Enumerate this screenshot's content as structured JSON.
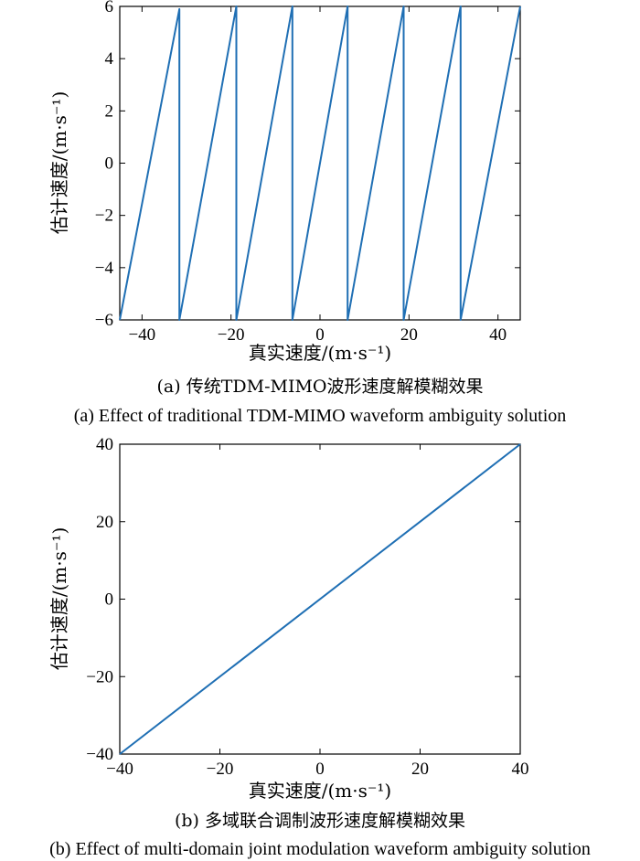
{
  "chart_data": [
    {
      "type": "line",
      "title": "",
      "xlabel": "真实速度/(m·s⁻¹)",
      "ylabel": "估计速度/(m·s⁻¹)",
      "xlim": [
        -45,
        45
      ],
      "ylim": [
        -6,
        6
      ],
      "xticks": [
        -40,
        -20,
        0,
        20,
        40
      ],
      "xtick_labels": [
        "−40",
        "−20",
        "0",
        "20",
        "40"
      ],
      "yticks": [
        -6,
        -4,
        -2,
        0,
        2,
        4,
        6
      ],
      "ytick_labels": [
        "−6",
        "−4",
        "−2",
        "0",
        "2",
        "4",
        "6"
      ],
      "grid": false,
      "color": "#1f6fb4",
      "series": [
        {
          "values_x": [
            -45,
            -31.6,
            -31.6,
            -18.8,
            -18.8,
            -6.2,
            -6.2,
            6.2,
            6.2,
            18.8,
            18.8,
            31.6,
            31.6,
            45
          ],
          "values_y": [
            -6,
            5.9,
            -6,
            6,
            -6,
            6,
            -6,
            6,
            -6,
            6,
            -6,
            6,
            -6,
            6
          ]
        }
      ],
      "caption_zh": "(a) 传统TDM-MIMO波形速度解模糊效果",
      "caption_en": "(a) Effect of traditional TDM-MIMO waveform ambiguity solution"
    },
    {
      "type": "line",
      "title": "",
      "xlabel": "真实速度/(m·s⁻¹)",
      "ylabel": "估计速度/(m·s⁻¹)",
      "xlim": [
        -40,
        40
      ],
      "ylim": [
        -40,
        40
      ],
      "xticks": [
        -40,
        -20,
        0,
        20,
        40
      ],
      "xtick_labels": [
        "−40",
        "−20",
        "0",
        "20",
        "40"
      ],
      "yticks": [
        -40,
        -20,
        0,
        20,
        40
      ],
      "ytick_labels": [
        "−40",
        "−20",
        "0",
        "20",
        "40"
      ],
      "grid": false,
      "color": "#1f6fb4",
      "series": [
        {
          "values_x": [
            -40,
            40
          ],
          "values_y": [
            -40,
            40
          ]
        }
      ],
      "caption_zh": "(b) 多域联合调制波形速度解模糊效果",
      "caption_en": "(b) Effect of multi-domain joint modulation waveform ambiguity solution"
    }
  ]
}
